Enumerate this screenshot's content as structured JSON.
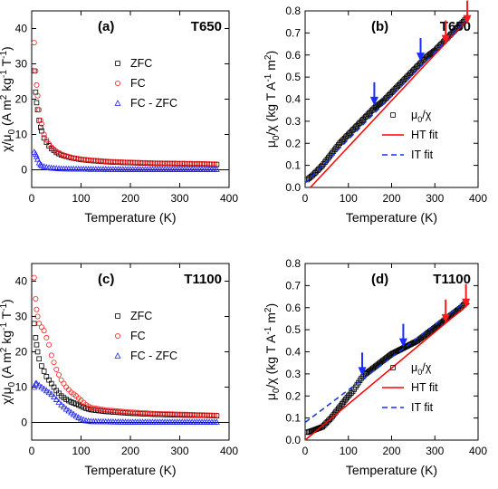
{
  "colors": {
    "zfc": "#000000",
    "fc": "#ff2020",
    "diff": "#1c1cff",
    "ht_fit": "#ff0000",
    "it_fit": "#1030ff",
    "inv_chi": "#000000",
    "arrow_blue": "#1a2cff",
    "arrow_red": "#ff1a1a"
  },
  "chart_data": [
    {
      "type": "scatter",
      "panel": "(a)",
      "sample": "T650",
      "xlabel": "Temperature (K)",
      "ylabel": [
        "χ/μ",
        "0",
        " (A m",
        "2",
        " kg",
        "-1",
        " T",
        "-1",
        ")"
      ],
      "xlim": [
        0,
        400
      ],
      "ylim": [
        -5,
        45
      ],
      "xticks": [
        0,
        100,
        200,
        300,
        400
      ],
      "yticks": [
        0,
        10,
        20,
        30,
        40
      ],
      "legend_position": "right",
      "series": [
        {
          "name": "ZFC",
          "marker": "square",
          "color_key": "zfc",
          "x": [
            5,
            8,
            10,
            12,
            15,
            18,
            20,
            25,
            30,
            35,
            40,
            50,
            60,
            70,
            80,
            100,
            120,
            140,
            160,
            180,
            200,
            250,
            300,
            350,
            375
          ],
          "y": [
            28,
            22,
            19,
            17,
            14,
            12,
            11,
            9,
            7.8,
            6.8,
            6,
            4.9,
            4.2,
            3.8,
            3.4,
            2.9,
            2.6,
            2.4,
            2.2,
            2.1,
            2,
            1.8,
            1.7,
            1.6,
            1.5
          ]
        },
        {
          "name": "FC",
          "marker": "circle",
          "color_key": "fc",
          "x": [
            5,
            8,
            10,
            12,
            15,
            18,
            20,
            25,
            30,
            35,
            40,
            50,
            60,
            70,
            80,
            100,
            120,
            140,
            160,
            180,
            200,
            250,
            300,
            350,
            375
          ],
          "y": [
            36,
            28,
            24,
            21,
            17,
            14,
            13,
            10,
            8.5,
            7.3,
            6.4,
            5.2,
            4.4,
            3.9,
            3.5,
            3,
            2.7,
            2.5,
            2.3,
            2.2,
            2.1,
            1.9,
            1.8,
            1.7,
            1.6
          ]
        },
        {
          "name": "FC - ZFC",
          "marker": "triangle",
          "color_key": "diff",
          "x": [
            5,
            8,
            10,
            12,
            15,
            18,
            20,
            25,
            30,
            40,
            50,
            60,
            80,
            100,
            150,
            200,
            250,
            300,
            350,
            375
          ],
          "y": [
            5,
            4.5,
            3.8,
            3,
            2,
            1.5,
            1.2,
            0.9,
            0.7,
            0.5,
            0.4,
            0.3,
            0.25,
            0.2,
            0.15,
            0.1,
            0.1,
            0.1,
            0.1,
            0.1
          ]
        }
      ],
      "baseline": 0
    },
    {
      "type": "line",
      "panel": "(b)",
      "sample": "T650",
      "xlabel": "Temperature (K)",
      "ylabel": [
        "μ",
        "0",
        "/χ (kg T A",
        "-1",
        " m",
        "2",
        ")"
      ],
      "xlim": [
        0,
        400
      ],
      "ylim": [
        0,
        0.8
      ],
      "xticks": [
        0,
        100,
        200,
        300,
        400
      ],
      "yticks": [
        0.0,
        0.1,
        0.2,
        0.3,
        0.4,
        0.5,
        0.6,
        0.7,
        0.8
      ],
      "legend_position": "lower-right",
      "series": [
        {
          "name": "μ0/χ",
          "label_parts": [
            "μ",
            "0",
            "/χ"
          ],
          "marker": "square",
          "color_key": "inv_chi",
          "x": [
            5,
            20,
            40,
            60,
            80,
            100,
            120,
            140,
            160,
            180,
            200,
            220,
            240,
            260,
            280,
            300,
            320,
            340,
            360,
            375
          ],
          "y": [
            0.035,
            0.06,
            0.1,
            0.15,
            0.2,
            0.24,
            0.28,
            0.32,
            0.36,
            0.39,
            0.43,
            0.47,
            0.51,
            0.55,
            0.59,
            0.62,
            0.66,
            0.7,
            0.74,
            0.77
          ]
        },
        {
          "name": "HT fit",
          "line": "solid",
          "color_key": "ht_fit",
          "x": [
            12,
            380
          ],
          "y": [
            0.0,
            0.77
          ]
        },
        {
          "name": "IT fit",
          "line": "dashed",
          "color_key": "it_fit",
          "x": [
            0,
            380
          ],
          "y": [
            0.02,
            0.77
          ]
        }
      ],
      "arrows": [
        {
          "x": 160,
          "y_tip": 0.37,
          "color_key": "arrow_blue"
        },
        {
          "x": 267,
          "y_tip": 0.57,
          "color_key": "arrow_blue"
        },
        {
          "x": 325,
          "y_tip": 0.65,
          "color_key": "arrow_red"
        },
        {
          "x": 375,
          "y_tip": 0.74,
          "color_key": "arrow_red"
        }
      ]
    },
    {
      "type": "scatter",
      "panel": "(c)",
      "sample": "T1100",
      "xlabel": "Temperature (K)",
      "ylabel": [
        "χ/μ",
        "0",
        " (A m",
        "2",
        " kg",
        "-1",
        " T",
        "-1",
        ")"
      ],
      "xlim": [
        0,
        400
      ],
      "ylim": [
        -5,
        45
      ],
      "xticks": [
        0,
        100,
        200,
        300,
        400
      ],
      "yticks": [
        0,
        10,
        20,
        30,
        40
      ],
      "legend_position": "right",
      "series": [
        {
          "name": "ZFC",
          "marker": "square",
          "color_key": "zfc",
          "x": [
            5,
            8,
            10,
            12,
            15,
            20,
            25,
            30,
            35,
            40,
            50,
            60,
            70,
            80,
            90,
            100,
            110,
            120,
            150,
            200,
            250,
            300,
            350,
            375
          ],
          "y": [
            28,
            24,
            22,
            20,
            18,
            16,
            14.5,
            13,
            12,
            11,
            9,
            7.5,
            6.5,
            5.8,
            5.2,
            4.6,
            4,
            3.6,
            3.1,
            2.6,
            2.3,
            2.1,
            2,
            1.9
          ]
        },
        {
          "name": "FC",
          "marker": "circle",
          "color_key": "fc",
          "x": [
            5,
            8,
            10,
            12,
            15,
            20,
            25,
            30,
            35,
            40,
            50,
            60,
            70,
            80,
            90,
            100,
            110,
            120,
            150,
            200,
            250,
            300,
            350,
            375
          ],
          "y": [
            41,
            35,
            32,
            30,
            28,
            27,
            26,
            24,
            22,
            19,
            15,
            12,
            10,
            8.5,
            7.5,
            6.3,
            5,
            4.2,
            3.5,
            2.9,
            2.5,
            2.3,
            2.1,
            2
          ]
        },
        {
          "name": "FC - ZFC",
          "marker": "triangle",
          "color_key": "diff",
          "x": [
            5,
            8,
            10,
            15,
            20,
            25,
            30,
            40,
            50,
            60,
            70,
            80,
            90,
            100,
            110,
            120,
            150,
            200,
            250,
            300,
            350,
            375
          ],
          "y": [
            10,
            11,
            11,
            10.5,
            10,
            9.5,
            9,
            8,
            6.5,
            5,
            3.8,
            2.8,
            1.8,
            1,
            0.5,
            0.3,
            0.2,
            0.1,
            0.1,
            0.1,
            0.1,
            0.1
          ]
        }
      ],
      "baseline": 0
    },
    {
      "type": "line",
      "panel": "(d)",
      "sample": "T1100",
      "xlabel": "Temperature (K)",
      "ylabel": [
        "μ",
        "0",
        "/χ (kg T A",
        "-1",
        " m",
        "2",
        ")"
      ],
      "xlim": [
        0,
        400
      ],
      "ylim": [
        0,
        0.8
      ],
      "xticks": [
        0,
        100,
        200,
        300,
        400
      ],
      "yticks": [
        0.0,
        0.1,
        0.2,
        0.3,
        0.4,
        0.5,
        0.6,
        0.7,
        0.8
      ],
      "legend_position": "lower-right",
      "series": [
        {
          "name": "μ0/χ",
          "label_parts": [
            "μ",
            "0",
            "/χ"
          ],
          "marker": "square",
          "color_key": "inv_chi",
          "x": [
            5,
            20,
            40,
            60,
            80,
            100,
            110,
            120,
            130,
            140,
            160,
            180,
            200,
            220,
            240,
            260,
            280,
            300,
            320,
            340,
            360,
            375
          ],
          "y": [
            0.035,
            0.045,
            0.06,
            0.1,
            0.15,
            0.2,
            0.22,
            0.25,
            0.28,
            0.3,
            0.33,
            0.36,
            0.39,
            0.41,
            0.43,
            0.45,
            0.48,
            0.51,
            0.54,
            0.57,
            0.6,
            0.63
          ]
        },
        {
          "name": "HT fit",
          "line": "solid",
          "color_key": "ht_fit",
          "x": [
            0,
            380
          ],
          "y": [
            0.0,
            0.62
          ]
        },
        {
          "name": "IT fit",
          "line": "dashed",
          "color_key": "it_fit",
          "x": [
            0,
            380
          ],
          "y": [
            0.08,
            0.64
          ]
        }
      ],
      "arrows": [
        {
          "x": 132,
          "y_tip": 0.29,
          "color_key": "arrow_blue"
        },
        {
          "x": 227,
          "y_tip": 0.42,
          "color_key": "arrow_blue"
        },
        {
          "x": 325,
          "y_tip": 0.53,
          "color_key": "arrow_red"
        },
        {
          "x": 372,
          "y_tip": 0.6,
          "color_key": "arrow_red"
        }
      ]
    }
  ]
}
